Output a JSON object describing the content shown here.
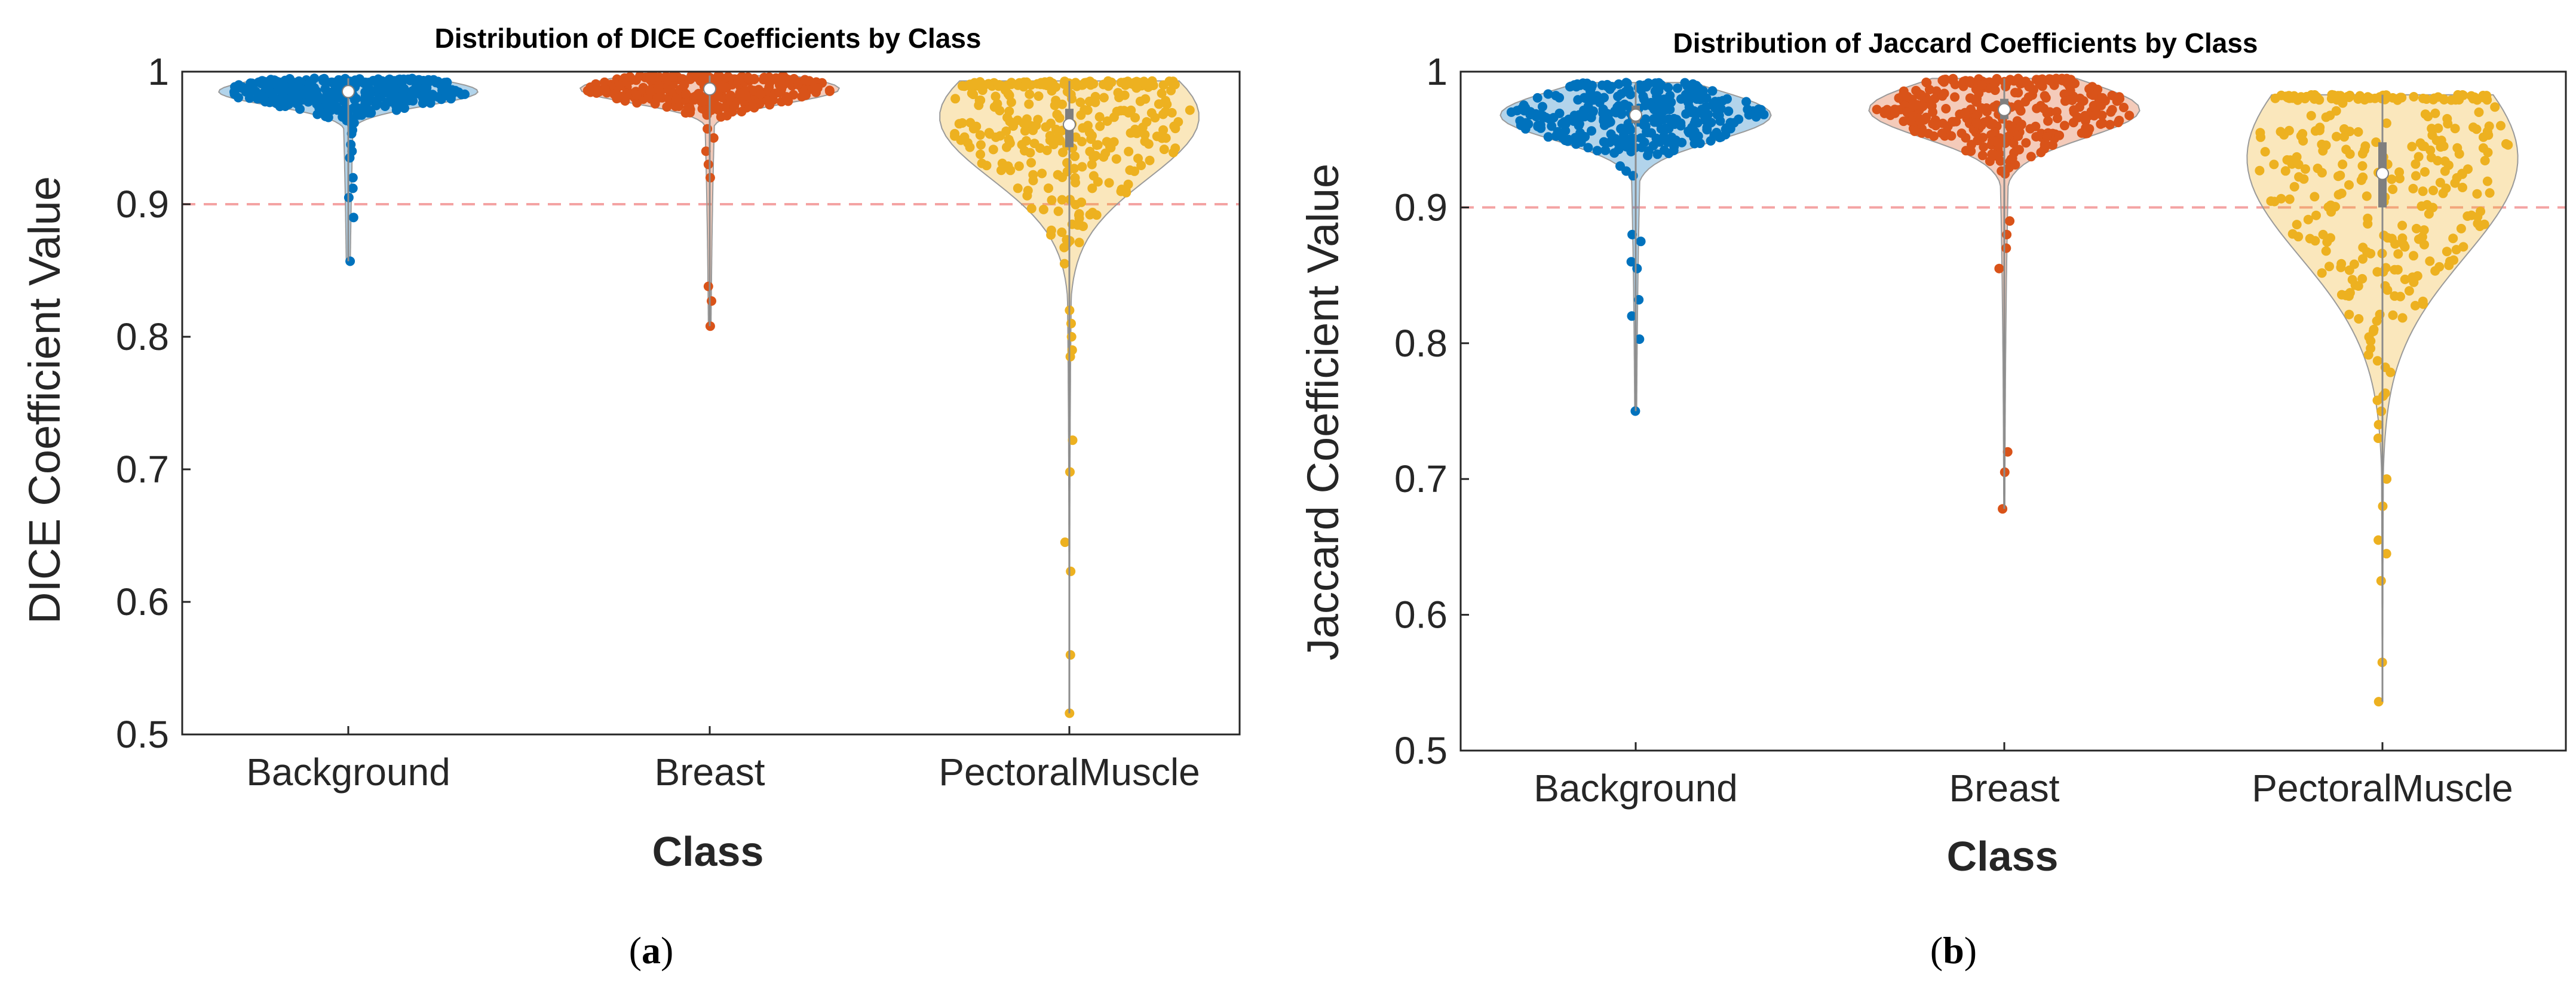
{
  "chart_data": [
    {
      "type": "violin-swarm",
      "panel_label": "a",
      "title": "Distribution of DICE Coefficients by Class",
      "xlabel": "Class",
      "ylabel": "DICE Coefficient Value",
      "ylim": [
        0.5,
        1.0
      ],
      "yticks": [
        0.5,
        0.6,
        0.7,
        0.8,
        0.9,
        1.0
      ],
      "ytick_labels": [
        "0.5",
        "0.6",
        "0.7",
        "0.8",
        "0.9",
        "1"
      ],
      "reference_line": {
        "y": 0.9,
        "style": "dashed",
        "color": "#f4a3a3"
      },
      "categories": [
        "Background",
        "Breast",
        "PectoralMuscle"
      ],
      "series": [
        {
          "name": "Background",
          "color": "#0072BD",
          "median": 0.985,
          "q1": 0.982,
          "q3": 0.988,
          "min": 0.857,
          "max": 0.995,
          "outliers": [
            0.857,
            0.89,
            0.905,
            0.912,
            0.92,
            0.935,
            0.94,
            0.945
          ]
        },
        {
          "name": "Breast",
          "color": "#D95319",
          "median": 0.987,
          "q1": 0.984,
          "q3": 0.99,
          "min": 0.808,
          "max": 0.997,
          "outliers": [
            0.808,
            0.827,
            0.838,
            0.92,
            0.93,
            0.94,
            0.95
          ]
        },
        {
          "name": "PectoralMuscle",
          "color": "#EDB120",
          "median": 0.96,
          "q1": 0.943,
          "q3": 0.972,
          "min": 0.516,
          "max": 0.993,
          "outliers": [
            0.516,
            0.56,
            0.623,
            0.645,
            0.698,
            0.722,
            0.785,
            0.79,
            0.8,
            0.81,
            0.82
          ]
        }
      ]
    },
    {
      "type": "violin-swarm",
      "panel_label": "b",
      "title": "Distribution of Jaccard Coefficients by Class",
      "xlabel": "Class",
      "ylabel": "Jaccard Coefficient Value",
      "ylim": [
        0.5,
        1.0
      ],
      "yticks": [
        0.5,
        0.6,
        0.7,
        0.8,
        0.9,
        1.0
      ],
      "ytick_labels": [
        "0.5",
        "0.6",
        "0.7",
        "0.8",
        "0.9",
        "1"
      ],
      "reference_line": {
        "y": 0.9,
        "style": "dashed",
        "color": "#f4a3a3"
      },
      "categories": [
        "Background",
        "Breast",
        "PectoralMuscle"
      ],
      "series": [
        {
          "name": "Background",
          "color": "#0072BD",
          "median": 0.968,
          "q1": 0.962,
          "q3": 0.975,
          "min": 0.75,
          "max": 0.992,
          "outliers": [
            0.75,
            0.803,
            0.82,
            0.832,
            0.855,
            0.86,
            0.875,
            0.88
          ]
        },
        {
          "name": "Breast",
          "color": "#D95319",
          "median": 0.972,
          "q1": 0.965,
          "q3": 0.98,
          "min": 0.678,
          "max": 0.995,
          "outliers": [
            0.678,
            0.705,
            0.72,
            0.855,
            0.87,
            0.88,
            0.89
          ]
        },
        {
          "name": "PectoralMuscle",
          "color": "#EDB120",
          "median": 0.925,
          "q1": 0.9,
          "q3": 0.948,
          "min": 0.536,
          "max": 0.983,
          "outliers": [
            0.536,
            0.565,
            0.625,
            0.645,
            0.655,
            0.68,
            0.7,
            0.73,
            0.74
          ]
        }
      ]
    }
  ]
}
